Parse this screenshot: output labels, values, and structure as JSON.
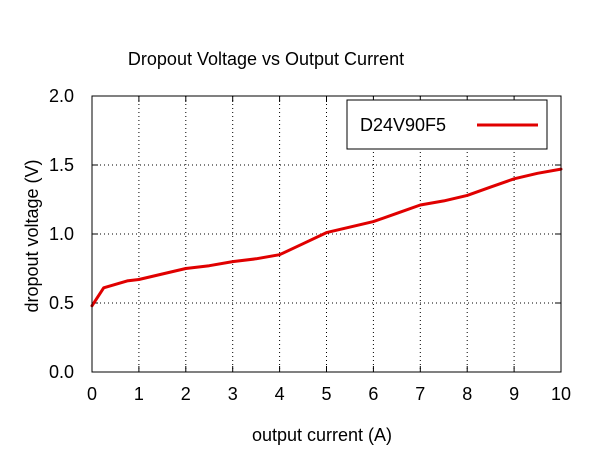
{
  "chart_data": {
    "type": "line",
    "title": "Dropout Voltage vs Output Current",
    "xlabel": "output current (A)",
    "ylabel": "dropout voltage (V)",
    "xlim": [
      0,
      10
    ],
    "ylim": [
      0.0,
      2.0
    ],
    "x_ticks": [
      "0",
      "1",
      "2",
      "3",
      "4",
      "5",
      "6",
      "7",
      "8",
      "9",
      "10"
    ],
    "y_ticks": [
      "0.0",
      "0.5",
      "1.0",
      "1.5",
      "2.0"
    ],
    "grid": true,
    "legend_position": "top-right",
    "series": [
      {
        "name": "D24V90F5",
        "color": "#e00000",
        "x": [
          0.0,
          0.25,
          0.75,
          1.0,
          1.5,
          2.0,
          2.5,
          3.0,
          3.5,
          4.0,
          4.5,
          5.0,
          5.5,
          6.0,
          6.5,
          7.0,
          7.5,
          8.0,
          8.5,
          9.0,
          9.5,
          10.0
        ],
        "y": [
          0.48,
          0.61,
          0.66,
          0.67,
          0.71,
          0.75,
          0.77,
          0.8,
          0.82,
          0.85,
          0.93,
          1.01,
          1.05,
          1.09,
          1.15,
          1.21,
          1.24,
          1.28,
          1.34,
          1.4,
          1.44,
          1.47
        ]
      }
    ]
  }
}
